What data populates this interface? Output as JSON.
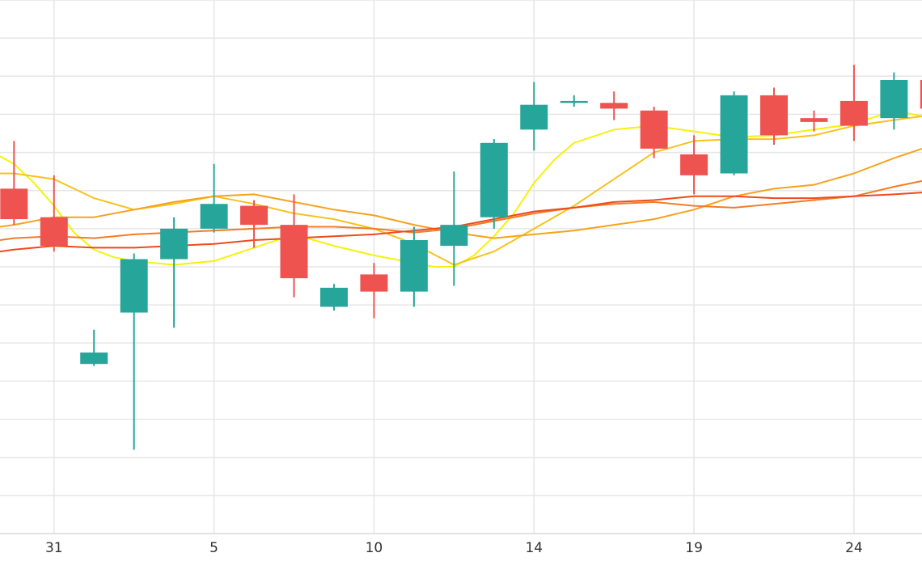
{
  "chart_data": {
    "type": "candlestick",
    "x_ticks": [
      {
        "label": "31",
        "x": 1
      },
      {
        "label": "5",
        "x": 5
      },
      {
        "label": "10",
        "x": 9
      },
      {
        "label": "14",
        "x": 13
      },
      {
        "label": "19",
        "x": 17
      },
      {
        "label": "24",
        "x": 21
      }
    ],
    "xlim": [
      -0.35,
      22.7
    ],
    "ylim": [
      0,
      14
    ],
    "grid": true,
    "candles": [
      {
        "x": 0,
        "open": 9.05,
        "close": 8.25,
        "high": 10.3,
        "low": 8.1
      },
      {
        "x": 1,
        "open": 8.3,
        "close": 7.55,
        "high": 9.4,
        "low": 7.4
      },
      {
        "x": 2,
        "open": 4.45,
        "close": 4.75,
        "high": 5.35,
        "low": 4.4
      },
      {
        "x": 3,
        "open": 5.8,
        "close": 7.2,
        "high": 7.35,
        "low": 2.2
      },
      {
        "x": 4,
        "open": 7.2,
        "close": 8.0,
        "high": 8.3,
        "low": 5.4
      },
      {
        "x": 5,
        "open": 8.0,
        "close": 8.65,
        "high": 9.7,
        "low": 7.9
      },
      {
        "x": 6,
        "open": 8.6,
        "close": 8.1,
        "high": 8.75,
        "low": 7.5
      },
      {
        "x": 7,
        "open": 8.1,
        "close": 6.7,
        "high": 8.9,
        "low": 6.2
      },
      {
        "x": 8,
        "open": 5.95,
        "close": 6.45,
        "high": 6.55,
        "low": 5.85
      },
      {
        "x": 9,
        "open": 6.8,
        "close": 6.35,
        "high": 7.1,
        "low": 5.65
      },
      {
        "x": 10,
        "open": 6.35,
        "close": 7.7,
        "high": 8.05,
        "low": 5.95
      },
      {
        "x": 11,
        "open": 7.55,
        "close": 8.1,
        "high": 9.5,
        "low": 6.5
      },
      {
        "x": 12,
        "open": 8.3,
        "close": 10.25,
        "high": 10.35,
        "low": 8.0
      },
      {
        "x": 13,
        "open": 10.6,
        "close": 11.25,
        "high": 11.85,
        "low": 10.05
      },
      {
        "x": 14,
        "open": 11.3,
        "close": 11.35,
        "high": 11.5,
        "low": 11.2
      },
      {
        "x": 15,
        "open": 11.3,
        "close": 11.15,
        "high": 11.6,
        "low": 10.85
      },
      {
        "x": 16,
        "open": 11.1,
        "close": 10.1,
        "high": 11.2,
        "low": 9.85
      },
      {
        "x": 17,
        "open": 9.95,
        "close": 9.4,
        "high": 10.45,
        "low": 8.9
      },
      {
        "x": 18,
        "open": 9.45,
        "close": 11.5,
        "high": 11.6,
        "low": 9.4
      },
      {
        "x": 19,
        "open": 11.5,
        "close": 10.45,
        "high": 11.7,
        "low": 10.2
      },
      {
        "x": 20,
        "open": 10.9,
        "close": 10.8,
        "high": 11.1,
        "low": 10.55
      },
      {
        "x": 21,
        "open": 11.35,
        "close": 10.7,
        "high": 12.3,
        "low": 10.3
      },
      {
        "x": 22,
        "open": 10.9,
        "close": 11.9,
        "high": 12.1,
        "low": 10.6
      },
      {
        "x": 23,
        "open": 11.9,
        "close": 11.15,
        "high": 12.3,
        "low": 10.95
      }
    ],
    "moving_averages": [
      {
        "color": "#f5f20a",
        "points": [
          [
            -0.35,
            9.9
          ],
          [
            0,
            9.7
          ],
          [
            0.5,
            9.2
          ],
          [
            1,
            8.6
          ],
          [
            1.5,
            7.9
          ],
          [
            2,
            7.45
          ],
          [
            2.5,
            7.25
          ],
          [
            3,
            7.15
          ],
          [
            3.5,
            7.1
          ],
          [
            4,
            7.05
          ],
          [
            5,
            7.15
          ],
          [
            6,
            7.5
          ],
          [
            7,
            7.85
          ],
          [
            8,
            7.55
          ],
          [
            9,
            7.3
          ],
          [
            10,
            7.1
          ],
          [
            10.5,
            7.0
          ],
          [
            11,
            7.0
          ],
          [
            11.5,
            7.3
          ],
          [
            12,
            7.8
          ],
          [
            12.5,
            8.4
          ],
          [
            13,
            9.2
          ],
          [
            13.5,
            9.8
          ],
          [
            14,
            10.25
          ],
          [
            15,
            10.6
          ],
          [
            16,
            10.7
          ],
          [
            17,
            10.55
          ],
          [
            18,
            10.4
          ],
          [
            19,
            10.45
          ],
          [
            20,
            10.6
          ],
          [
            21,
            10.75
          ],
          [
            22,
            11.1
          ],
          [
            22.7,
            10.95
          ]
        ]
      },
      {
        "color": "#f7c21e",
        "points": [
          [
            -0.35,
            9.45
          ],
          [
            0,
            9.45
          ],
          [
            1,
            9.3
          ],
          [
            2,
            8.8
          ],
          [
            3,
            8.5
          ],
          [
            4,
            8.65
          ],
          [
            5,
            8.85
          ],
          [
            6,
            8.65
          ],
          [
            7,
            8.4
          ],
          [
            8,
            8.25
          ],
          [
            9,
            8.0
          ],
          [
            10,
            7.6
          ],
          [
            11,
            7.05
          ],
          [
            12,
            7.4
          ],
          [
            13,
            8.0
          ],
          [
            14,
            8.6
          ],
          [
            15,
            9.3
          ],
          [
            16,
            10.0
          ],
          [
            17,
            10.3
          ],
          [
            18,
            10.35
          ],
          [
            19,
            10.35
          ],
          [
            20,
            10.45
          ],
          [
            21,
            10.7
          ],
          [
            22,
            10.85
          ],
          [
            22.7,
            10.95
          ]
        ]
      },
      {
        "color": "#f7a21c",
        "points": [
          [
            -0.35,
            8.05
          ],
          [
            0,
            8.1
          ],
          [
            1,
            8.3
          ],
          [
            2,
            8.3
          ],
          [
            3,
            8.5
          ],
          [
            4,
            8.7
          ],
          [
            5,
            8.85
          ],
          [
            6,
            8.9
          ],
          [
            7,
            8.7
          ],
          [
            8,
            8.5
          ],
          [
            9,
            8.35
          ],
          [
            10,
            8.1
          ],
          [
            11,
            7.9
          ],
          [
            12,
            7.75
          ],
          [
            13,
            7.85
          ],
          [
            14,
            7.95
          ],
          [
            15,
            8.1
          ],
          [
            16,
            8.25
          ],
          [
            17,
            8.5
          ],
          [
            18,
            8.85
          ],
          [
            19,
            9.05
          ],
          [
            20,
            9.15
          ],
          [
            21,
            9.45
          ],
          [
            22,
            9.85
          ],
          [
            22.7,
            10.1
          ]
        ]
      },
      {
        "color": "#f47c24",
        "points": [
          [
            -0.35,
            7.7
          ],
          [
            0,
            7.75
          ],
          [
            1,
            7.8
          ],
          [
            2,
            7.75
          ],
          [
            3,
            7.85
          ],
          [
            4,
            7.9
          ],
          [
            5,
            7.95
          ],
          [
            6,
            8.0
          ],
          [
            7,
            8.05
          ],
          [
            8,
            8.05
          ],
          [
            9,
            8.0
          ],
          [
            10,
            7.9
          ],
          [
            11,
            8.0
          ],
          [
            12,
            8.2
          ],
          [
            13,
            8.4
          ],
          [
            14,
            8.55
          ],
          [
            15,
            8.65
          ],
          [
            16,
            8.7
          ],
          [
            17,
            8.6
          ],
          [
            18,
            8.55
          ],
          [
            19,
            8.65
          ],
          [
            20,
            8.75
          ],
          [
            21,
            8.85
          ],
          [
            22,
            9.1
          ],
          [
            22.7,
            9.25
          ]
        ]
      },
      {
        "color": "#ee4a1e",
        "points": [
          [
            -0.35,
            7.4
          ],
          [
            0,
            7.45
          ],
          [
            1,
            7.55
          ],
          [
            2,
            7.5
          ],
          [
            3,
            7.5
          ],
          [
            4,
            7.55
          ],
          [
            5,
            7.6
          ],
          [
            6,
            7.7
          ],
          [
            7,
            7.75
          ],
          [
            8,
            7.8
          ],
          [
            9,
            7.85
          ],
          [
            10,
            7.95
          ],
          [
            11,
            8.05
          ],
          [
            12,
            8.25
          ],
          [
            13,
            8.45
          ],
          [
            14,
            8.55
          ],
          [
            15,
            8.7
          ],
          [
            16,
            8.75
          ],
          [
            17,
            8.85
          ],
          [
            18,
            8.85
          ],
          [
            19,
            8.8
          ],
          [
            20,
            8.8
          ],
          [
            21,
            8.85
          ],
          [
            22,
            8.9
          ],
          [
            22.7,
            8.95
          ]
        ]
      }
    ],
    "colors": {
      "up": "#26a69a",
      "down": "#ef5350",
      "grid": "#e6e6e6",
      "axis": "#d9d9d9"
    }
  }
}
